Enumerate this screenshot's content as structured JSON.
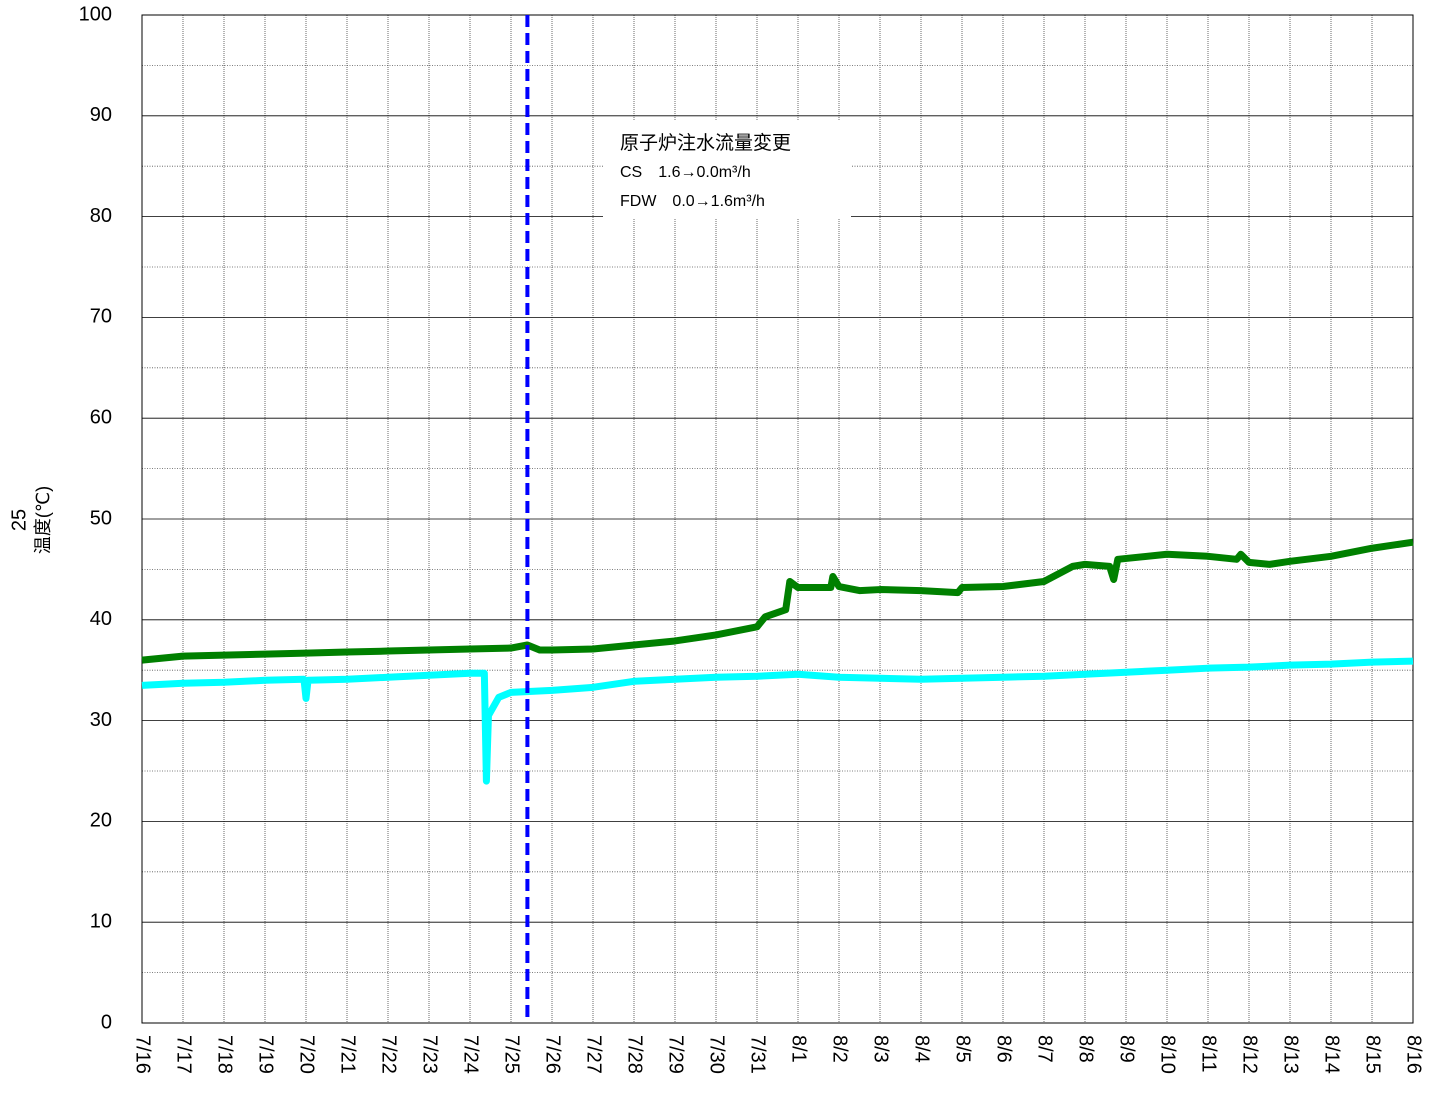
{
  "chart_data": {
    "type": "line",
    "ylabel": "温度(℃)",
    "ylabel_prefix": "25",
    "xlim": [
      0,
      31
    ],
    "xticks": [
      {
        "value": 0,
        "label": "7/16"
      },
      {
        "value": 1,
        "label": "7/17"
      },
      {
        "value": 2,
        "label": "7/18"
      },
      {
        "value": 3,
        "label": "7/19"
      },
      {
        "value": 4,
        "label": "7/20"
      },
      {
        "value": 5,
        "label": "7/21"
      },
      {
        "value": 6,
        "label": "7/22"
      },
      {
        "value": 7,
        "label": "7/23"
      },
      {
        "value": 8,
        "label": "7/24"
      },
      {
        "value": 9,
        "label": "7/25"
      },
      {
        "value": 10,
        "label": "7/26"
      },
      {
        "value": 11,
        "label": "7/27"
      },
      {
        "value": 12,
        "label": "7/28"
      },
      {
        "value": 13,
        "label": "7/29"
      },
      {
        "value": 14,
        "label": "7/30"
      },
      {
        "value": 15,
        "label": "7/31"
      },
      {
        "value": 16,
        "label": "8/1"
      },
      {
        "value": 17,
        "label": "8/2"
      },
      {
        "value": 18,
        "label": "8/3"
      },
      {
        "value": 19,
        "label": "8/4"
      },
      {
        "value": 20,
        "label": "8/5"
      },
      {
        "value": 21,
        "label": "8/6"
      },
      {
        "value": 22,
        "label": "8/7"
      },
      {
        "value": 23,
        "label": "8/8"
      },
      {
        "value": 24,
        "label": "8/9"
      },
      {
        "value": 25,
        "label": "8/10"
      },
      {
        "value": 26,
        "label": "8/11"
      },
      {
        "value": 27,
        "label": "8/12"
      },
      {
        "value": 28,
        "label": "8/13"
      },
      {
        "value": 29,
        "label": "8/14"
      },
      {
        "value": 30,
        "label": "8/15"
      },
      {
        "value": 31,
        "label": "8/16"
      }
    ],
    "ylim": [
      0,
      100
    ],
    "yticks": [
      0,
      10,
      20,
      30,
      40,
      50,
      60,
      70,
      80,
      90,
      100
    ],
    "yminor": [
      5,
      15,
      25,
      35,
      45,
      55,
      65,
      75,
      85,
      95
    ],
    "grid": true,
    "series": [
      {
        "color": "#008000",
        "x": [
          0,
          1,
          2,
          3,
          4,
          5,
          6,
          7,
          8,
          9,
          9.4,
          9.7,
          10,
          11,
          12,
          13,
          14,
          15,
          15.2,
          15.7,
          15.8,
          16,
          16.8,
          16.85,
          17,
          17.5,
          18,
          19,
          19.9,
          20,
          21,
          22,
          22.7,
          23,
          23.6,
          23.7,
          23.8,
          25,
          26,
          26.7,
          26.8,
          27,
          27.5,
          28,
          29,
          30,
          31
        ],
        "values": [
          36,
          36.4,
          36.5,
          36.6,
          36.7,
          36.8,
          36.9,
          37.0,
          37.1,
          37.2,
          37.5,
          37.0,
          37.0,
          37.1,
          37.5,
          37.9,
          38.5,
          39.3,
          40.3,
          41,
          43.8,
          43.2,
          43.2,
          44.3,
          43.3,
          42.9,
          43,
          42.9,
          42.7,
          43.2,
          43.3,
          43.8,
          45.3,
          45.5,
          45.3,
          44,
          46,
          46.5,
          46.3,
          46.0,
          46.5,
          45.7,
          45.5,
          45.8,
          46.3,
          47.1,
          47.7
        ]
      },
      {
        "color": "#00ffff",
        "x": [
          0,
          1,
          2,
          3,
          3.95,
          4,
          4.05,
          5,
          6,
          7,
          8,
          8.35,
          8.4,
          8.45,
          8.7,
          9,
          10,
          11,
          12,
          13,
          14,
          15,
          16,
          17,
          18,
          19,
          20,
          21,
          22,
          23,
          24,
          25,
          26,
          27,
          28,
          29,
          30,
          31
        ],
        "values": [
          33.5,
          33.7,
          33.8,
          34.0,
          34.1,
          32.2,
          34.0,
          34.1,
          34.3,
          34.5,
          34.7,
          34.7,
          24,
          30.5,
          32.3,
          32.8,
          33.0,
          33.3,
          33.9,
          34.1,
          34.3,
          34.4,
          34.6,
          34.3,
          34.2,
          34.1,
          34.2,
          34.3,
          34.4,
          34.6,
          34.8,
          35.0,
          35.2,
          35.3,
          35.5,
          35.6,
          35.8,
          35.9
        ]
      }
    ],
    "annotation": {
      "x": 9.4,
      "color": "#0000ff",
      "lines": [
        "原子炉注水流量変更",
        "CS　1.6→0.0m³/h",
        "FDW　0.0→1.6m³/h"
      ]
    }
  }
}
